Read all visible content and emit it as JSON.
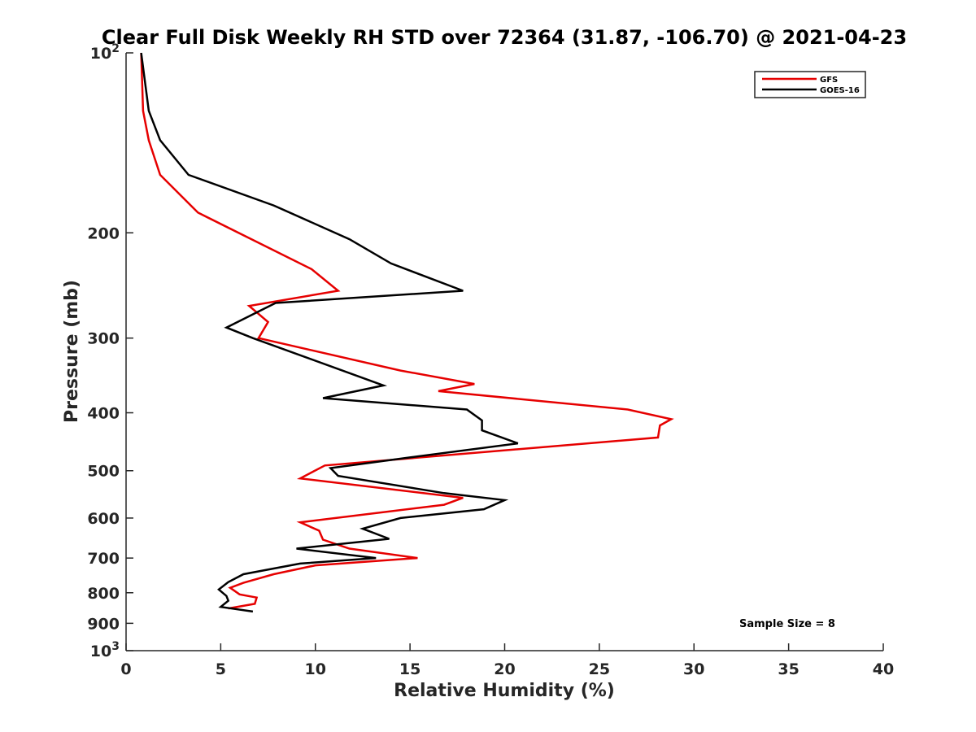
{
  "chart_data": {
    "type": "line",
    "title": "Clear Full Disk Weekly RH STD over 72364 (31.87, -106.70) @ 2021-04-23",
    "xlabel": "Relative Humidity (%)",
    "ylabel": "Pressure (mb)",
    "xlim": [
      0,
      40
    ],
    "ylim": [
      100,
      1000
    ],
    "y_scale": "log",
    "y_reversed": true,
    "x_ticks": [
      0,
      5,
      10,
      15,
      20,
      25,
      30,
      35,
      40
    ],
    "x_tick_labels": [
      "0",
      "5",
      "10",
      "15",
      "20",
      "25",
      "30",
      "35",
      "40"
    ],
    "y_ticks": [
      100,
      200,
      300,
      400,
      500,
      600,
      700,
      800,
      900,
      1000
    ],
    "y_tick_labels": [
      {
        "base": "10",
        "exp": "2"
      },
      {
        "base": "200",
        "exp": ""
      },
      {
        "base": "300",
        "exp": ""
      },
      {
        "base": "400",
        "exp": ""
      },
      {
        "base": "500",
        "exp": ""
      },
      {
        "base": "600",
        "exp": ""
      },
      {
        "base": "700",
        "exp": ""
      },
      {
        "base": "800",
        "exp": ""
      },
      {
        "base": "900",
        "exp": ""
      },
      {
        "base": "10",
        "exp": "3"
      }
    ],
    "grid": false,
    "legend_position": "top-right",
    "annotation": "Sample Size = 8",
    "series": [
      {
        "name": "GFS",
        "color": "#e60000",
        "points": [
          [
            0.8,
            100
          ],
          [
            0.9,
            125
          ],
          [
            1.2,
            140
          ],
          [
            1.8,
            160
          ],
          [
            3.8,
            185
          ],
          [
            9.8,
            230
          ],
          [
            11.2,
            250
          ],
          [
            6.5,
            265
          ],
          [
            7.5,
            282
          ],
          [
            7.0,
            300
          ],
          [
            14.5,
            340
          ],
          [
            18.4,
            358
          ],
          [
            16.5,
            368
          ],
          [
            26.5,
            395
          ],
          [
            28.8,
            410
          ],
          [
            28.2,
            420
          ],
          [
            28.1,
            440
          ],
          [
            10.5,
            490
          ],
          [
            9.2,
            515
          ],
          [
            17.8,
            555
          ],
          [
            16.8,
            570
          ],
          [
            9.2,
            610
          ],
          [
            10.2,
            630
          ],
          [
            10.4,
            652
          ],
          [
            11.8,
            675
          ],
          [
            15.4,
            700
          ],
          [
            10.0,
            720
          ],
          [
            7.8,
            745
          ],
          [
            6.2,
            770
          ],
          [
            5.5,
            785
          ],
          [
            6.0,
            805
          ],
          [
            6.9,
            815
          ],
          [
            6.8,
            835
          ],
          [
            5.4,
            850
          ]
        ]
      },
      {
        "name": "GOES-16",
        "color": "#000000",
        "points": [
          [
            0.8,
            100
          ],
          [
            1.2,
            125
          ],
          [
            1.8,
            140
          ],
          [
            3.3,
            160
          ],
          [
            7.8,
            180
          ],
          [
            11.8,
            205
          ],
          [
            14.0,
            225
          ],
          [
            17.8,
            250
          ],
          [
            7.9,
            262
          ],
          [
            5.3,
            288
          ],
          [
            6.7,
            300
          ],
          [
            13.6,
            360
          ],
          [
            10.4,
            378
          ],
          [
            18.0,
            395
          ],
          [
            18.8,
            412
          ],
          [
            18.8,
            428
          ],
          [
            20.7,
            450
          ],
          [
            15.0,
            475
          ],
          [
            10.8,
            495
          ],
          [
            11.2,
            510
          ],
          [
            16.8,
            545
          ],
          [
            20.0,
            560
          ],
          [
            18.9,
            580
          ],
          [
            14.5,
            600
          ],
          [
            12.5,
            625
          ],
          [
            13.9,
            650
          ],
          [
            9.0,
            675
          ],
          [
            13.2,
            700
          ],
          [
            9.2,
            715
          ],
          [
            6.2,
            745
          ],
          [
            5.4,
            768
          ],
          [
            4.9,
            790
          ],
          [
            5.3,
            810
          ],
          [
            5.4,
            825
          ],
          [
            5.0,
            845
          ],
          [
            6.7,
            860
          ]
        ]
      }
    ]
  }
}
